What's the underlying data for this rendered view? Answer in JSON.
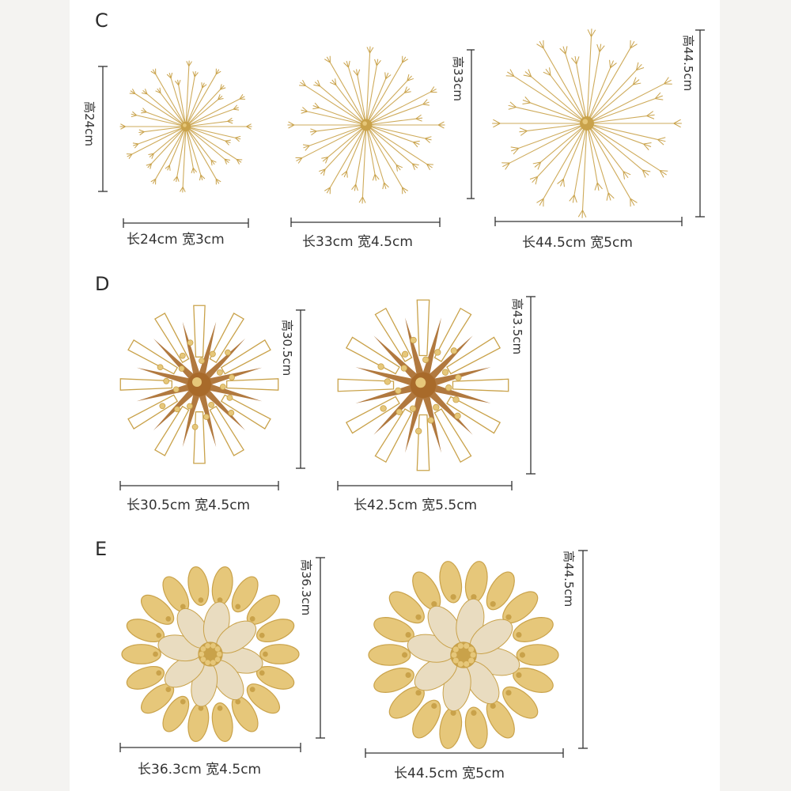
{
  "sections": [
    {
      "letter": "C",
      "items": [
        {
          "design": "dandelion",
          "width_label": "长24cm   宽3cm",
          "height_label": "高24cm"
        },
        {
          "design": "dandelion",
          "width_label": "长33cm   宽4.5cm",
          "height_label": "高33cm"
        },
        {
          "design": "dandelion",
          "width_label": "长44.5cm   宽5cm",
          "height_label": "高44.5cm"
        }
      ]
    },
    {
      "letter": "D",
      "items": [
        {
          "design": "starburst",
          "width_label": "长30.5cm   宽4.5cm",
          "height_label": "高30.5cm"
        },
        {
          "design": "starburst",
          "width_label": "长42.5cm   宽5.5cm",
          "height_label": "高43.5cm"
        }
      ]
    },
    {
      "letter": "E",
      "items": [
        {
          "design": "lotus",
          "width_label": "长36.3cm   宽4.5cm",
          "height_label": "高36.3cm"
        },
        {
          "design": "lotus",
          "width_label": "长44.5cm   宽5cm",
          "height_label": "高44.5cm"
        }
      ]
    }
  ],
  "colors": {
    "gold": "#c9a24a",
    "gold_light": "#e6c77a",
    "bronze": "#a86a2a",
    "line": "#333333"
  }
}
